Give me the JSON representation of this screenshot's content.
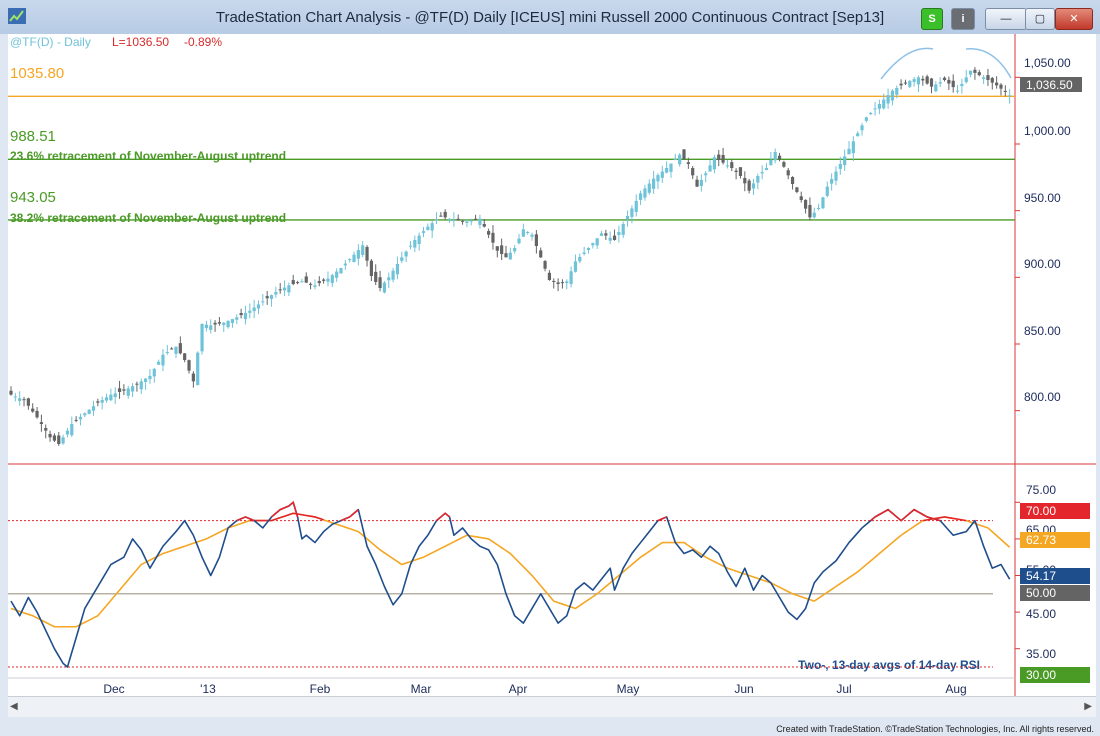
{
  "window": {
    "title": "TradeStation Chart Analysis - @TF(D) Daily [ICEUS] mini Russell 2000 Continuous Contract [Sep13]",
    "btn_s": "S",
    "btn_i": "i",
    "btn_min": "—",
    "btn_max": "▢",
    "btn_close": "✕"
  },
  "colors": {
    "up": "#6fc3d8",
    "down": "#646464",
    "rsi": "#1f4e8c",
    "avg": "#f5a623",
    "overbought": "#e3262b",
    "support": "#4a9a26",
    "resistance": "#f5a623",
    "axis_red": "#d93a3a"
  },
  "chart_data": [
    {
      "type": "candlestick",
      "header": {
        "symbol": "@TF(D) - Daily",
        "last": "L=1036.50",
        "change": "-0.89%"
      },
      "ylim": [
        760,
        1075
      ],
      "y_ticks": [
        "1,050.00",
        "1,000.00",
        "950.00",
        "900.00",
        "850.00",
        "800.00"
      ],
      "y_tick_values": [
        1050,
        1000,
        950,
        900,
        850,
        800
      ],
      "last_price_label": "1,036.50",
      "last_price": 1036.5,
      "x_labels": [
        "Dec",
        "'13",
        "Feb",
        "Mar",
        "Apr",
        "May",
        "Jun",
        "Jul",
        "Aug"
      ],
      "levels": [
        {
          "value": 1035.8,
          "label": "1035.80",
          "note": "",
          "kind": "resistance"
        },
        {
          "value": 988.51,
          "label": "988.51",
          "note": "23.6% retracement of November-August uptrend",
          "kind": "support"
        },
        {
          "value": 943.05,
          "label": "943.05",
          "note": "38.2% retracement of November-August uptrend",
          "kind": "support"
        }
      ],
      "close_anchors": [
        [
          0,
          812
        ],
        [
          3,
          808
        ],
        [
          6,
          795
        ],
        [
          9,
          780
        ],
        [
          11,
          775
        ],
        [
          14,
          790
        ],
        [
          17,
          798
        ],
        [
          20,
          806
        ],
        [
          23,
          812
        ],
        [
          26,
          815
        ],
        [
          29,
          820
        ],
        [
          32,
          826
        ],
        [
          35,
          842
        ],
        [
          38,
          848
        ],
        [
          40,
          838
        ],
        [
          42,
          822
        ],
        [
          44,
          865
        ],
        [
          46,
          864
        ],
        [
          49,
          866
        ],
        [
          52,
          870
        ],
        [
          55,
          875
        ],
        [
          58,
          882
        ],
        [
          61,
          889
        ],
        [
          64,
          894
        ],
        [
          67,
          897
        ],
        [
          70,
          894
        ],
        [
          73,
          899
        ],
        [
          76,
          907
        ],
        [
          79,
          917
        ],
        [
          81,
          924
        ],
        [
          83,
          901
        ],
        [
          85,
          892
        ],
        [
          87,
          900
        ],
        [
          90,
          915
        ],
        [
          93,
          928
        ],
        [
          96,
          938
        ],
        [
          99,
          946
        ],
        [
          102,
          943
        ],
        [
          105,
          942
        ],
        [
          108,
          944
        ],
        [
          110,
          932
        ],
        [
          112,
          920
        ],
        [
          114,
          915
        ],
        [
          116,
          922
        ],
        [
          118,
          936
        ],
        [
          120,
          932
        ],
        [
          122,
          915
        ],
        [
          124,
          898
        ],
        [
          126,
          895
        ],
        [
          128,
          897
        ],
        [
          130,
          912
        ],
        [
          133,
          922
        ],
        [
          136,
          933
        ],
        [
          139,
          928
        ],
        [
          142,
          946
        ],
        [
          145,
          963
        ],
        [
          148,
          974
        ],
        [
          151,
          982
        ],
        [
          154,
          992
        ],
        [
          156,
          985
        ],
        [
          158,
          968
        ],
        [
          160,
          978
        ],
        [
          162,
          990
        ],
        [
          164,
          986
        ],
        [
          166,
          982
        ],
        [
          168,
          976
        ],
        [
          170,
          965
        ],
        [
          172,
          976
        ],
        [
          174,
          982
        ],
        [
          176,
          994
        ],
        [
          178,
          983
        ],
        [
          180,
          970
        ],
        [
          182,
          958
        ],
        [
          184,
          945
        ],
        [
          186,
          952
        ],
        [
          188,
          968
        ],
        [
          191,
          985
        ],
        [
          194,
          1002
        ],
        [
          197,
          1020
        ],
        [
          200,
          1030
        ],
        [
          203,
          1040
        ],
        [
          206,
          1046
        ],
        [
          209,
          1050
        ],
        [
          212,
          1043
        ],
        [
          215,
          1048
        ],
        [
          218,
          1040
        ],
        [
          221,
          1055
        ],
        [
          224,
          1050
        ],
        [
          227,
          1044
        ],
        [
          230,
          1036.5
        ]
      ],
      "annotation": "rounding top arc over July–August highs"
    },
    {
      "type": "line",
      "title": "Two-, 13-day avgs of 14-day RSI",
      "ylim": [
        27,
        80
      ],
      "y_ticks": [
        "75.00",
        "65.00",
        "55.00",
        "45.00",
        "35.00"
      ],
      "y_tick_values": [
        75,
        65,
        55,
        45,
        35
      ],
      "reference_lines": [
        {
          "value": 70,
          "label": "70.00",
          "style": "dashed"
        },
        {
          "value": 50,
          "label": "50.00",
          "style": "solid"
        },
        {
          "value": 30,
          "label": "30.00",
          "style": "dashed"
        }
      ],
      "value_labels": [
        {
          "value": 62.73,
          "label": "62.73",
          "series": "13-day avg"
        },
        {
          "value": 54.17,
          "label": "54.17",
          "series": "2-day avg"
        }
      ],
      "series": [
        {
          "name": "2-day avg",
          "anchors": [
            [
              0,
              48
            ],
            [
              2,
              44
            ],
            [
              4,
              49
            ],
            [
              6,
              45
            ],
            [
              8,
              40
            ],
            [
              10,
              35
            ],
            [
              12,
              31
            ],
            [
              13,
              30
            ],
            [
              15,
              38
            ],
            [
              17,
              46
            ],
            [
              20,
              52
            ],
            [
              23,
              58
            ],
            [
              26,
              60
            ],
            [
              28,
              65
            ],
            [
              30,
              62
            ],
            [
              32,
              57
            ],
            [
              35,
              63
            ],
            [
              38,
              67
            ],
            [
              40,
              70
            ],
            [
              42,
              66
            ],
            [
              44,
              60
            ],
            [
              46,
              55
            ],
            [
              48,
              60
            ],
            [
              50,
              68
            ],
            [
              52,
              70
            ],
            [
              54,
              71
            ],
            [
              56,
              70
            ],
            [
              58,
              68
            ],
            [
              60,
              71
            ],
            [
              62,
              73
            ],
            [
              64,
              74
            ],
            [
              65,
              75
            ],
            [
              66,
              71
            ],
            [
              67,
              65
            ],
            [
              68,
              66
            ],
            [
              70,
              64
            ],
            [
              72,
              67
            ],
            [
              74,
              69
            ],
            [
              76,
              70
            ],
            [
              78,
              71
            ],
            [
              80,
              73
            ],
            [
              82,
              63
            ],
            [
              84,
              58
            ],
            [
              86,
              52
            ],
            [
              88,
              47
            ],
            [
              90,
              50
            ],
            [
              92,
              58
            ],
            [
              94,
              63
            ],
            [
              96,
              66
            ],
            [
              98,
              70
            ],
            [
              100,
              72
            ],
            [
              101,
              71
            ],
            [
              102,
              66
            ],
            [
              104,
              68
            ],
            [
              106,
              65
            ],
            [
              108,
              63
            ],
            [
              110,
              62
            ],
            [
              112,
              58
            ],
            [
              114,
              50
            ],
            [
              116,
              44
            ],
            [
              118,
              42
            ],
            [
              120,
              46
            ],
            [
              122,
              50
            ],
            [
              124,
              46
            ],
            [
              126,
              42
            ],
            [
              128,
              44
            ],
            [
              130,
              51
            ],
            [
              132,
              53
            ],
            [
              134,
              51
            ],
            [
              136,
              54
            ],
            [
              138,
              57
            ],
            [
              139,
              51
            ],
            [
              141,
              57
            ],
            [
              143,
              61
            ],
            [
              145,
              64
            ],
            [
              147,
              67
            ],
            [
              149,
              70
            ],
            [
              151,
              71
            ],
            [
              153,
              64
            ],
            [
              155,
              61
            ],
            [
              157,
              62
            ],
            [
              159,
              60
            ],
            [
              161,
              63
            ],
            [
              163,
              61
            ],
            [
              165,
              56
            ],
            [
              167,
              52
            ],
            [
              169,
              57
            ],
            [
              171,
              51
            ],
            [
              173,
              55
            ],
            [
              175,
              53
            ],
            [
              177,
              49
            ],
            [
              179,
              45
            ],
            [
              181,
              43
            ],
            [
              183,
              46
            ],
            [
              185,
              53
            ],
            [
              187,
              56
            ],
            [
              190,
              59
            ],
            [
              193,
              64
            ],
            [
              196,
              68
            ],
            [
              199,
              71
            ],
            [
              202,
              73
            ],
            [
              205,
              70
            ],
            [
              208,
              73
            ],
            [
              211,
              71
            ],
            [
              214,
              70
            ],
            [
              217,
              66
            ],
            [
              220,
              67
            ],
            [
              222,
              70
            ],
            [
              224,
              63
            ],
            [
              226,
              57
            ],
            [
              228,
              58
            ],
            [
              230,
              54
            ]
          ]
        },
        {
          "name": "13-day avg",
          "anchors": [
            [
              0,
              46
            ],
            [
              5,
              44
            ],
            [
              10,
              41
            ],
            [
              15,
              41
            ],
            [
              20,
              44
            ],
            [
              25,
              51
            ],
            [
              30,
              58
            ],
            [
              35,
              61
            ],
            [
              40,
              63
            ],
            [
              45,
              65
            ],
            [
              50,
              68
            ],
            [
              55,
              70
            ],
            [
              60,
              70
            ],
            [
              65,
              72
            ],
            [
              70,
              71
            ],
            [
              75,
              69
            ],
            [
              80,
              67
            ],
            [
              85,
              62
            ],
            [
              90,
              58
            ],
            [
              95,
              60
            ],
            [
              100,
              63
            ],
            [
              105,
              66
            ],
            [
              110,
              65
            ],
            [
              115,
              61
            ],
            [
              120,
              55
            ],
            [
              125,
              48
            ],
            [
              130,
              46
            ],
            [
              135,
              50
            ],
            [
              140,
              55
            ],
            [
              145,
              60
            ],
            [
              150,
              64
            ],
            [
              155,
              64
            ],
            [
              160,
              60
            ],
            [
              165,
              57
            ],
            [
              170,
              55
            ],
            [
              175,
              53
            ],
            [
              180,
              50
            ],
            [
              185,
              48
            ],
            [
              190,
              52
            ],
            [
              195,
              56
            ],
            [
              200,
              61
            ],
            [
              205,
              66
            ],
            [
              210,
              70
            ],
            [
              215,
              71
            ],
            [
              220,
              70
            ],
            [
              225,
              68
            ],
            [
              230,
              62.73
            ]
          ]
        }
      ]
    }
  ],
  "footer": {
    "credit": "Created with TradeStation. ©TradeStation Technologies, Inc. All rights reserved."
  }
}
